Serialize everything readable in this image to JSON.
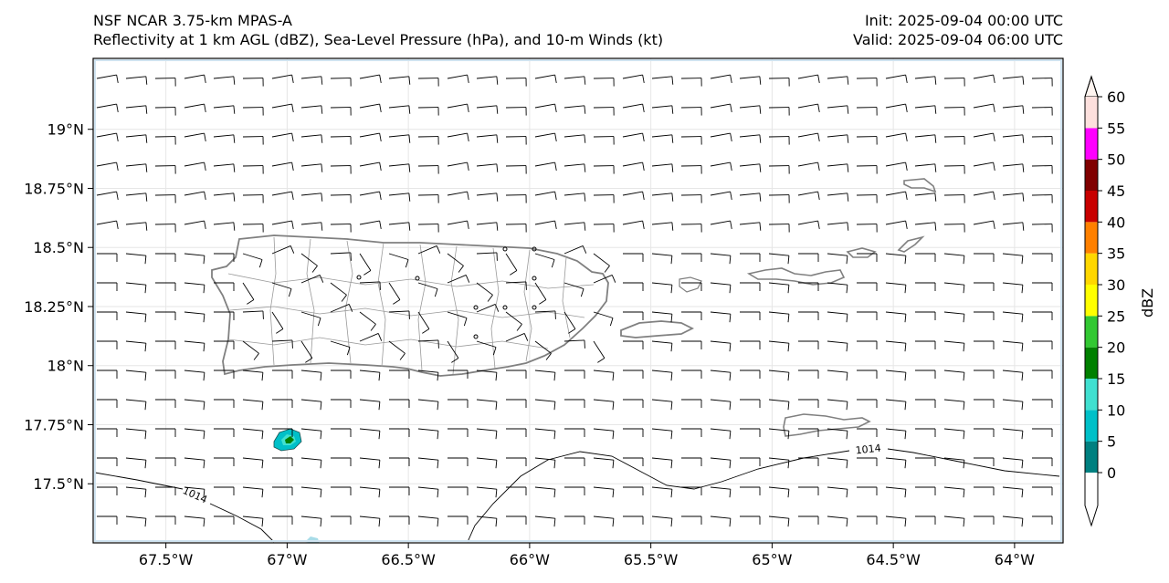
{
  "title": {
    "left_line1": "NSF NCAR 3.75-km MPAS-A",
    "left_line2": "Reflectivity at 1 km AGL (dBZ), Sea-Level Pressure (hPa), and 10-m Winds (kt)",
    "right_line1": "Init: 2025-09-04 00:00 UTC",
    "right_line2": "Valid: 2025-09-04 06:00 UTC"
  },
  "map": {
    "lon_range": [
      -67.8,
      -63.8
    ],
    "lat_range": [
      17.25,
      19.3
    ],
    "lon_ticks": [
      {
        "value": -67.5,
        "label": "67.5°W"
      },
      {
        "value": -67.0,
        "label": "67°W"
      },
      {
        "value": -66.5,
        "label": "66.5°W"
      },
      {
        "value": -66.0,
        "label": "66°W"
      },
      {
        "value": -65.5,
        "label": "65.5°W"
      },
      {
        "value": -65.0,
        "label": "65°W"
      },
      {
        "value": -64.5,
        "label": "64.5°W"
      },
      {
        "value": -64.0,
        "label": "64°W"
      }
    ],
    "lat_ticks": [
      {
        "value": 19.0,
        "label": "19°N"
      },
      {
        "value": 18.75,
        "label": "18.75°N"
      },
      {
        "value": 18.5,
        "label": "18.5°N"
      },
      {
        "value": 18.25,
        "label": "18.25°N"
      },
      {
        "value": 18.0,
        "label": "18°N"
      },
      {
        "value": 17.75,
        "label": "17.75°N"
      },
      {
        "value": 17.5,
        "label": "17.5°N"
      }
    ],
    "isobar_labels": [
      "1014",
      "1014"
    ],
    "colors": {
      "land_outline": "#808080",
      "isobar": "#000000",
      "barb": "#000000",
      "grid": "#e6e6e6"
    }
  },
  "colorbar": {
    "label": "dBZ",
    "levels": [
      "0",
      "5",
      "10",
      "15",
      "20",
      "25",
      "30",
      "35",
      "40",
      "45",
      "50",
      "55",
      "60"
    ],
    "colors": [
      "#008080",
      "#00c0c8",
      "#40e0d0",
      "#008000",
      "#32c832",
      "#ffff00",
      "#ffd700",
      "#ff8000",
      "#c80000",
      "#800000",
      "#ff00ff",
      "#fde0dd"
    ]
  }
}
